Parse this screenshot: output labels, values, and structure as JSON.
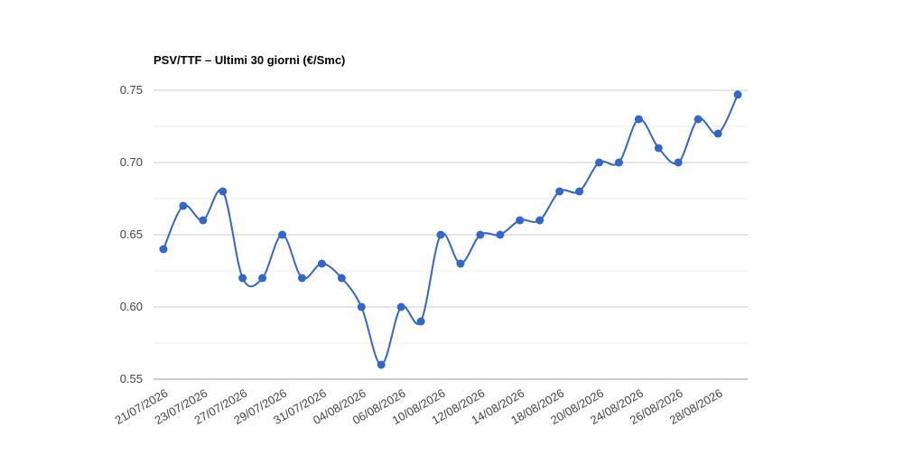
{
  "chart_data": {
    "type": "line",
    "title": "PSV/TTF – Ultimi 30 giorni (€/Smc)",
    "categories": [
      "21/07/2026",
      null,
      "23/07/2026",
      null,
      "27/07/2026",
      null,
      "29/07/2026",
      null,
      "31/07/2026",
      null,
      "04/08/2026",
      null,
      "06/08/2026",
      null,
      "10/08/2026",
      null,
      "12/08/2026",
      null,
      "14/08/2026",
      null,
      "18/08/2026",
      null,
      "20/08/2026",
      null,
      "24/08/2026",
      null,
      "26/08/2026",
      null,
      "28/08/2026",
      null
    ],
    "series": [
      {
        "name": "PSV/TTF",
        "color": "#3366cc",
        "values": [
          0.64,
          0.67,
          0.66,
          0.68,
          0.62,
          0.62,
          0.65,
          0.62,
          0.63,
          0.62,
          0.6,
          0.56,
          0.6,
          0.59,
          0.65,
          0.63,
          0.65,
          0.65,
          0.66,
          0.66,
          0.68,
          0.68,
          0.7,
          0.7,
          0.73,
          0.71,
          0.7,
          0.73,
          0.72,
          0.747
        ]
      }
    ],
    "ylim": [
      0.55,
      0.75
    ],
    "yticks": [
      0.55,
      {
        "value": 0.6,
        "label": "0.60"
      },
      0.65,
      {
        "value": 0.7,
        "label": "0.70"
      },
      0.75
    ],
    "grid": true,
    "minor_grid": true,
    "smooth": true
  }
}
